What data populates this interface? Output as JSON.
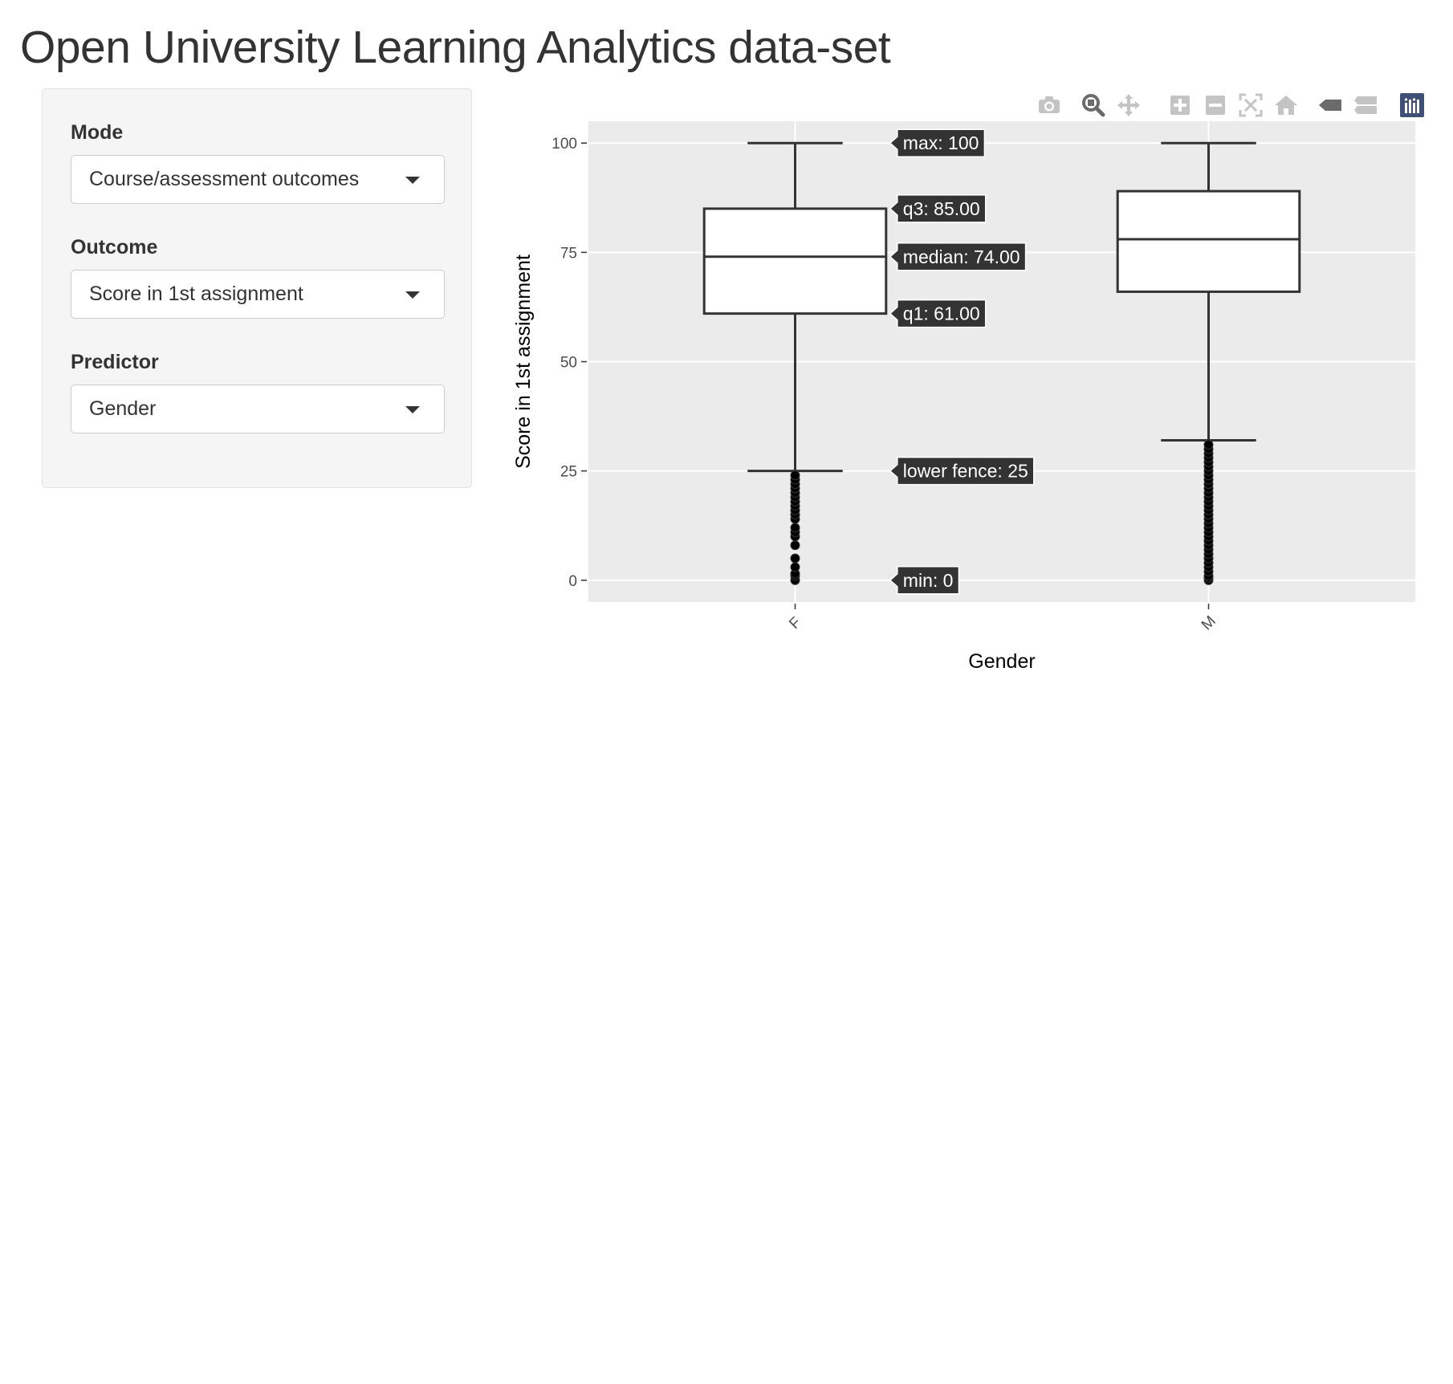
{
  "page": {
    "title": "Open University Learning Analytics data-set"
  },
  "sidebar": {
    "controls": [
      {
        "label": "Mode",
        "value": "Course/assessment outcomes"
      },
      {
        "label": "Outcome",
        "value": "Score in 1st assignment"
      },
      {
        "label": "Predictor",
        "value": "Gender"
      }
    ]
  },
  "modebar": {
    "icons": [
      "camera-icon",
      "zoom-icon",
      "pan-icon",
      "zoom-in-icon",
      "zoom-out-icon",
      "autoscale-icon",
      "reset-axes-icon",
      "hover-closest-icon",
      "hover-compare-icon",
      "plotly-logo-icon"
    ]
  },
  "chart_data": {
    "type": "box",
    "title": "",
    "xlabel": "Gender",
    "ylabel": "Score in 1st assignment",
    "ylim": [
      -5,
      105
    ],
    "yticks": [
      0,
      25,
      50,
      75,
      100
    ],
    "grid": true,
    "categories": [
      "F",
      "M"
    ],
    "boxes": [
      {
        "category": "F",
        "min": 0,
        "lower_fence": 25,
        "q1": 61,
        "median": 74,
        "q3": 85,
        "max": 100,
        "outliers": [
          0,
          1,
          1.5,
          3,
          5,
          8,
          10,
          11,
          12,
          14,
          15,
          16,
          17,
          18,
          19,
          20,
          21,
          22,
          23,
          24
        ]
      },
      {
        "category": "M",
        "min": 0,
        "lower_fence": 32,
        "q1": 66,
        "median": 78,
        "q3": 89,
        "max": 100,
        "outliers": [
          0,
          0.5,
          1,
          2,
          3,
          4,
          5,
          6,
          7,
          8,
          9,
          10,
          11,
          12,
          13,
          14,
          15,
          16,
          17,
          18,
          19,
          20,
          21,
          22,
          23,
          24,
          25,
          26,
          27,
          28,
          29,
          30,
          31
        ]
      }
    ],
    "hover_labels": [
      {
        "text": "max: 100",
        "value": 100
      },
      {
        "text": "q3: 85.00",
        "value": 85
      },
      {
        "text": "median: 74.00",
        "value": 74
      },
      {
        "text": "q1: 61.00",
        "value": 61
      },
      {
        "text": "lower fence: 25",
        "value": 25
      },
      {
        "text": "min: 0",
        "value": 0
      }
    ],
    "colors": {
      "plot_bg": "#ebebeb",
      "box_fill": "#ffffff",
      "box_line": "#333333",
      "outlier": "#000000",
      "hover_bg": "#333333",
      "hover_text": "#ffffff"
    }
  }
}
